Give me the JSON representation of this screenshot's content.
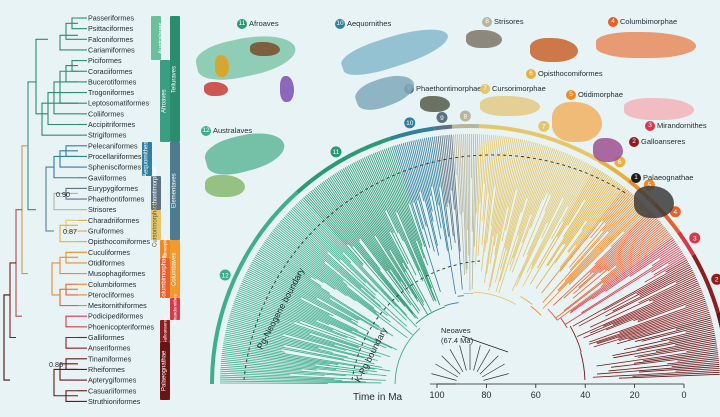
{
  "orders": [
    "Passeriformes",
    "Psittaciformes",
    "Falconiformes",
    "Cariamiformes",
    "Piciformes",
    "Coraciiformes",
    "Bucerotiformes",
    "Trogoniformes",
    "Leptosomatiformes",
    "Coliiformes",
    "Accipitriformes",
    "Strigiformes",
    "Pelecaniformes",
    "Procellariiformes",
    "Sphenisciformes",
    "Gaviiformes",
    "Eurypygiformes",
    "Phaethontiformes",
    "Strisores",
    "Charadriiformes",
    "Gruiformes",
    "Opisthocomiformes",
    "Cuculiformes",
    "Otidiformes",
    "Musophagiformes",
    "Columbiformes",
    "Pterocliformes",
    "Mesitornithiformes",
    "Podicipediformes",
    "Phoenicopteriformes",
    "Galliformes",
    "Anseriformes",
    "Tinamiformes",
    "Rheiformes",
    "Apterygiformes",
    "Casuariiformes",
    "Struthioniformes"
  ],
  "support_values": [
    "0.90",
    "0.87",
    "0.86"
  ],
  "bands": {
    "telluraves": "Telluraves",
    "australaves": "Australaves",
    "afroaves": "Afroaves",
    "aequornithes": "Aequornithes",
    "phaethontimorphae": "Phaethontimorphae",
    "elementaves": "Elementaves",
    "strisores": "Strisores",
    "cursorimorphae": "Cursorimorphae",
    "columbaves": "Columbaves",
    "otidimorphae": "Otidimorphae",
    "columbimorphae": "Columbimorphae",
    "mirandornithes": "Mirandornithes",
    "galloanseres": "Galloanseres",
    "palaeognathae": "Palaeognathae"
  },
  "clades": [
    {
      "n": "1",
      "label": "Palaeognathae",
      "color": "#6b1414"
    },
    {
      "n": "2",
      "label": "Galloanseres",
      "color": "#8f1d1d"
    },
    {
      "n": "3",
      "label": "Mirandornithes",
      "color": "#d9384a"
    },
    {
      "n": "4",
      "label": "Columbimorphae",
      "color": "#e8602c"
    },
    {
      "n": "5",
      "label": "Otidimorphae",
      "color": "#ef8a23"
    },
    {
      "n": "6",
      "label": "Opisthocomiformes",
      "color": "#e7b23a"
    },
    {
      "n": "7",
      "label": "Cursorimorphae",
      "color": "#e5c66a"
    },
    {
      "n": "8",
      "label": "Strisores",
      "color": "#b8b59c"
    },
    {
      "n": "9",
      "label": "Phaethontimorphae",
      "color": "#5e7180"
    },
    {
      "n": "10",
      "label": "Aequornithes",
      "color": "#2f7f9e"
    },
    {
      "n": "11",
      "label": "Afroaves",
      "color": "#2a9a72"
    },
    {
      "n": "12",
      "label": "Australaves",
      "color": "#3eae8c"
    }
  ],
  "axis": {
    "title": "Time in Ma",
    "ticks": [
      "100",
      "80",
      "60",
      "40",
      "20",
      "0"
    ]
  },
  "boundaries": {
    "pg_neogene": "Pg-Neogene boundary",
    "kpg": "K-Pg boundary"
  },
  "neoaves_note": {
    "line1": "Neoaves",
    "line2": "(67.4 Ma)"
  }
}
